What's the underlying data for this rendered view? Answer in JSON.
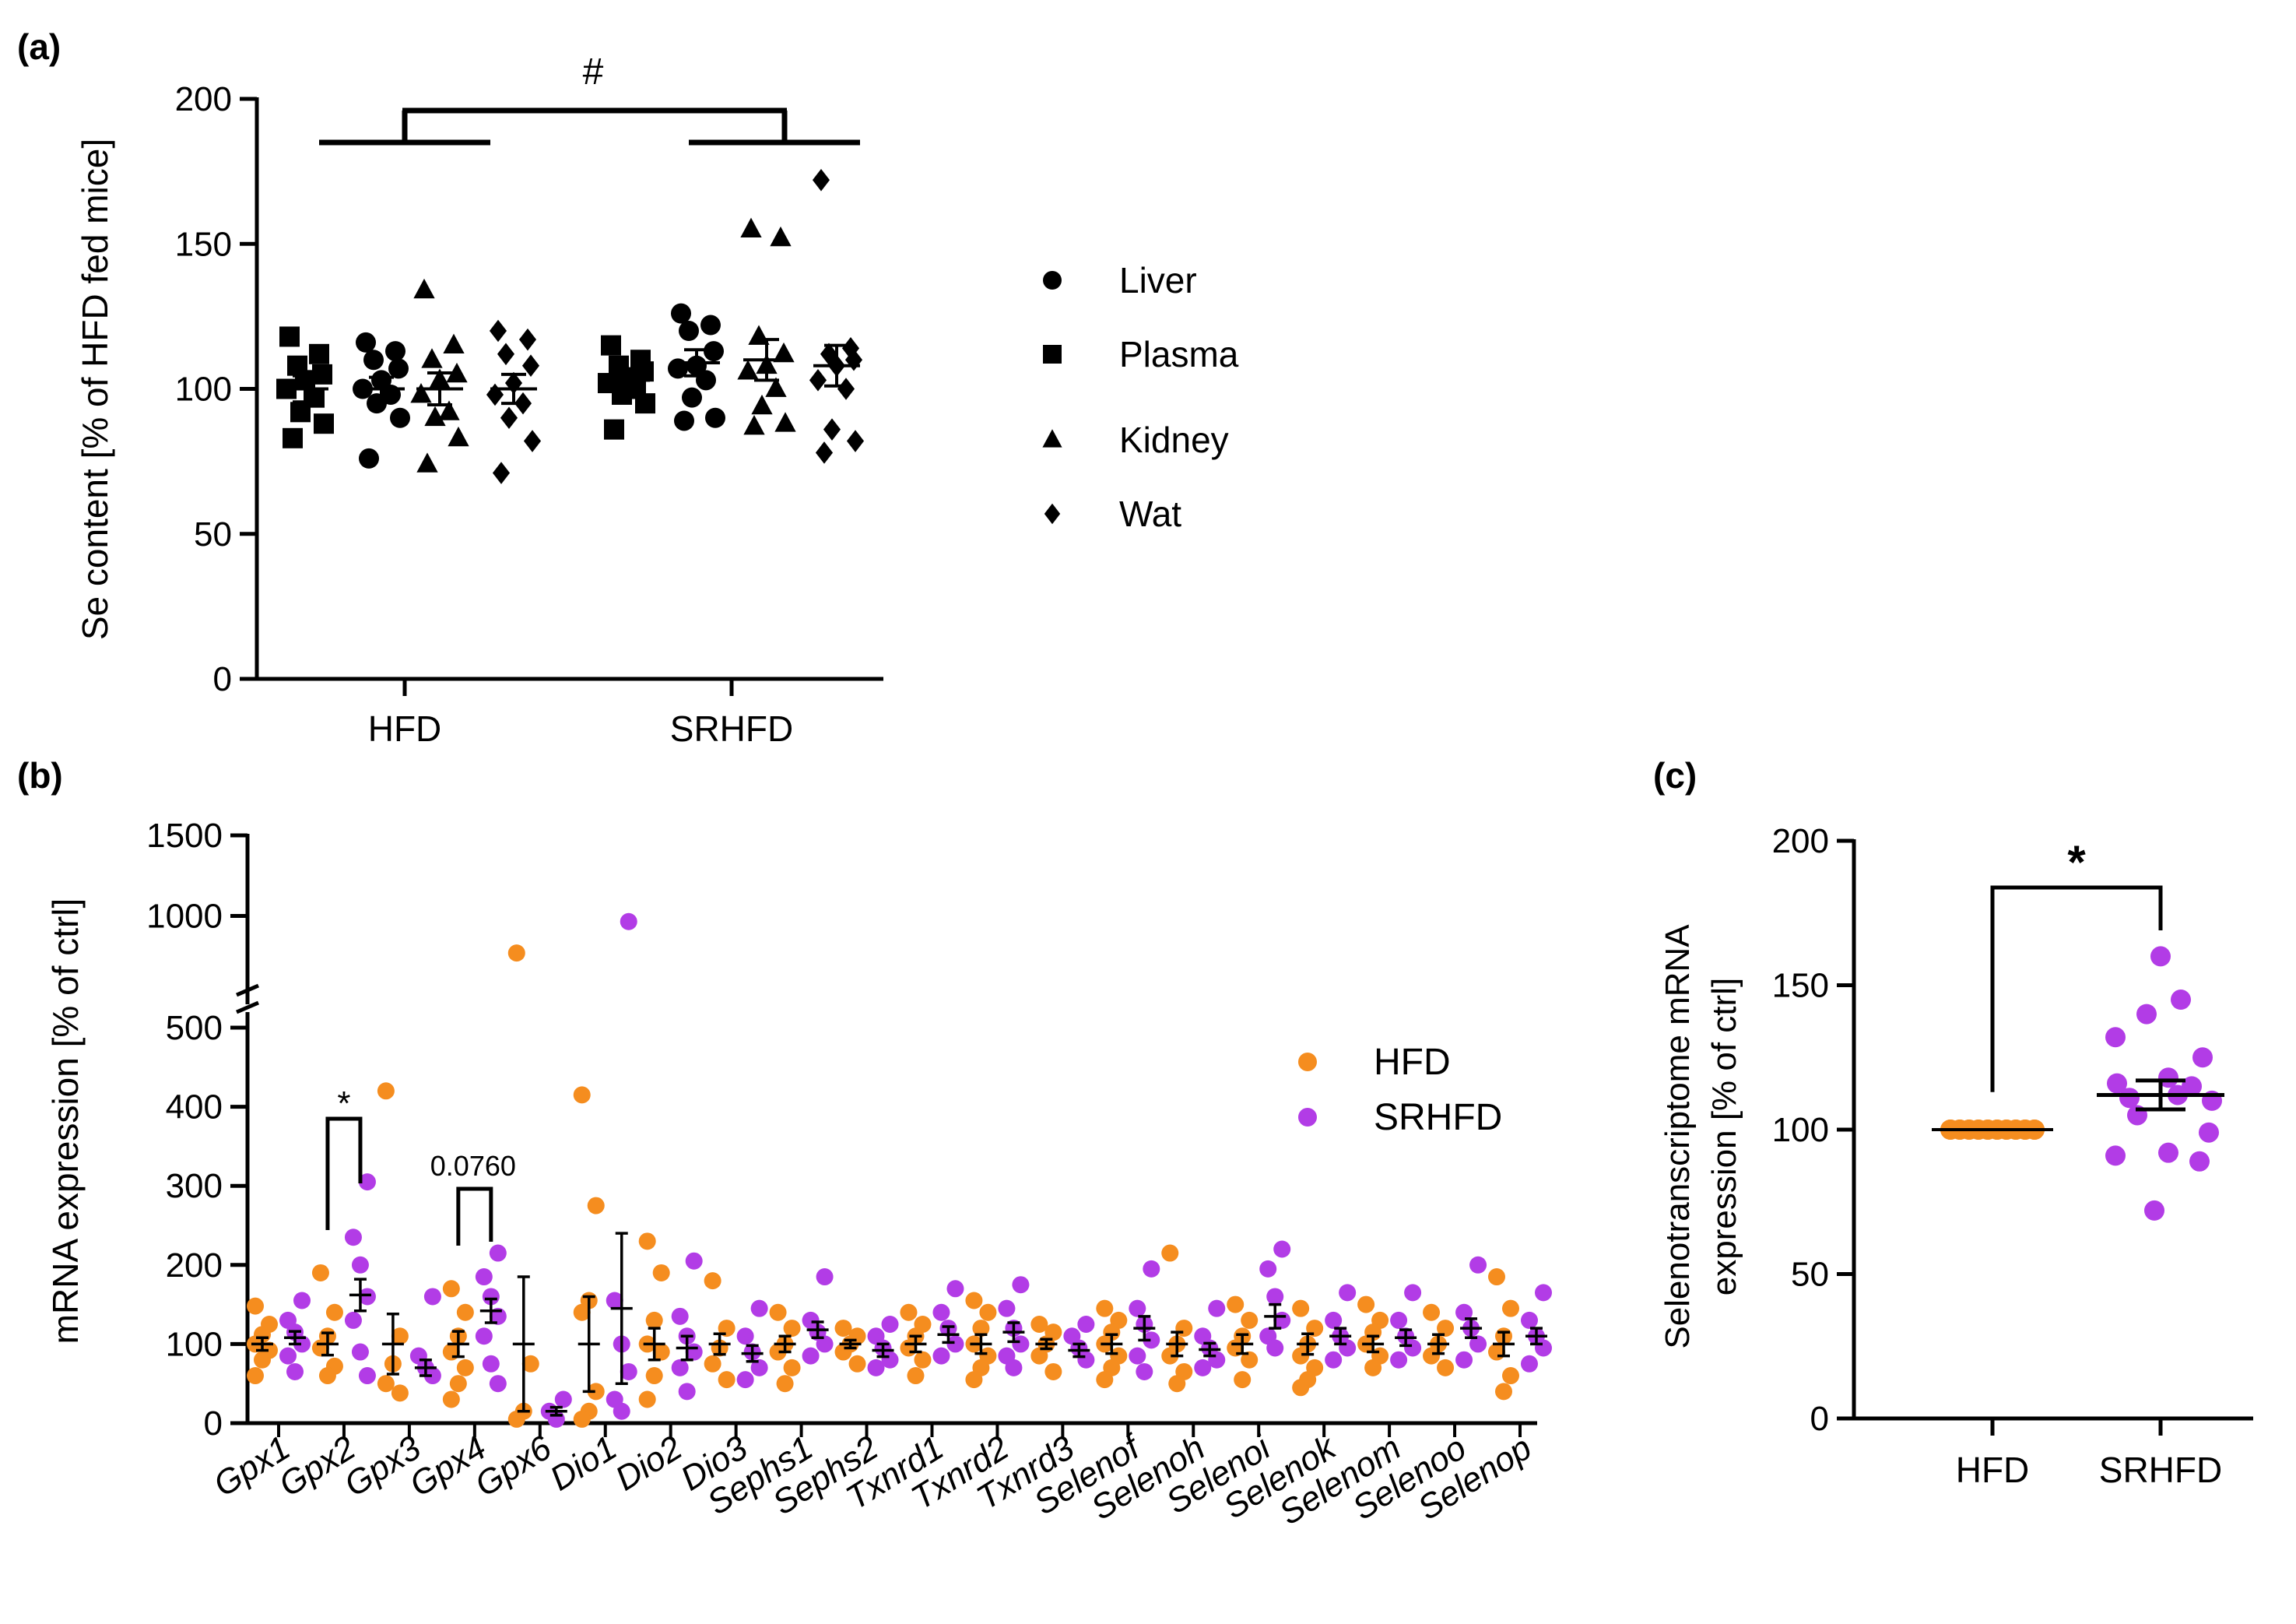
{
  "colors": {
    "hfd": "#f58d1f",
    "srhfd": "#b23ce6",
    "black": "#000000"
  },
  "chart_data": [
    {
      "panel": "(a)",
      "type": "scatter",
      "ylabel": "Se content [% of HFD fed mice]",
      "ylim": [
        0,
        200
      ],
      "yticks": [
        0,
        50,
        100,
        150,
        200
      ],
      "groups": [
        "HFD",
        "SRHFD"
      ],
      "significance": "#",
      "legend": [
        {
          "label": "Liver",
          "marker": "circle"
        },
        {
          "label": "Plasma",
          "marker": "square"
        },
        {
          "label": "Kidney",
          "marker": "triangle"
        },
        {
          "label": "Wat",
          "marker": "diamond"
        }
      ],
      "series": [
        {
          "group": "HFD",
          "tissue": "Plasma",
          "marker": "square",
          "mean": 100,
          "sem": 4.5,
          "values": [
            118,
            112,
            108,
            105,
            103,
            100,
            97,
            92,
            88,
            83
          ]
        },
        {
          "group": "HFD",
          "tissue": "Liver",
          "marker": "circle",
          "mean": 100,
          "sem": 4,
          "values": [
            116,
            113,
            110,
            107,
            103,
            100,
            98,
            95,
            90,
            76
          ]
        },
        {
          "group": "HFD",
          "tissue": "Kidney",
          "marker": "triangle",
          "mean": 100,
          "sem": 5.5,
          "values": [
            134,
            115,
            110,
            105,
            103,
            98,
            92,
            90,
            83,
            74
          ]
        },
        {
          "group": "HFD",
          "tissue": "Wat",
          "marker": "diamond",
          "mean": 100,
          "sem": 5,
          "values": [
            120,
            117,
            112,
            108,
            102,
            98,
            95,
            90,
            82,
            71
          ]
        },
        {
          "group": "SRHFD",
          "tissue": "Plasma",
          "marker": "square",
          "mean": 103,
          "sem": 3,
          "values": [
            115,
            110,
            108,
            106,
            104,
            102,
            100,
            98,
            95,
            86
          ]
        },
        {
          "group": "SRHFD",
          "tissue": "Liver",
          "marker": "circle",
          "mean": 109,
          "sem": 4.5,
          "values": [
            126,
            122,
            120,
            113,
            108,
            107,
            103,
            97,
            90,
            89
          ]
        },
        {
          "group": "SRHFD",
          "tissue": "Kidney",
          "marker": "triangle",
          "mean": 110,
          "sem": 7,
          "values": [
            155,
            152,
            118,
            112,
            108,
            106,
            100,
            94,
            88,
            87
          ]
        },
        {
          "group": "SRHFD",
          "tissue": "Wat",
          "marker": "diamond",
          "mean": 108,
          "sem": 7,
          "values": [
            172,
            114,
            112,
            110,
            108,
            103,
            100,
            86,
            82,
            78
          ]
        }
      ]
    },
    {
      "panel": "(b)",
      "type": "scatter",
      "ylabel": "mRNA expression [% of ctrl]",
      "ylim_lower": [
        0,
        500
      ],
      "ylim_upper": [
        500,
        1500
      ],
      "yticks": [
        0,
        100,
        200,
        300,
        400,
        500,
        1000,
        1500
      ],
      "legend": [
        {
          "label": "HFD",
          "series": "hfd"
        },
        {
          "label": "SRHFD",
          "series": "srhfd"
        }
      ],
      "genes": [
        "Gpx1",
        "Gpx2",
        "Gpx3",
        "Gpx4",
        "Gpx6",
        "Dio1",
        "Dio2",
        "Dio3",
        "Sephs1",
        "Sephs2",
        "Txnrd1",
        "Txnrd2",
        "Txnrd3",
        "Selenof",
        "Selenoh",
        "Selenoi",
        "Selenok",
        "Selenom",
        "Selenoo",
        "Selenop"
      ],
      "hfd": {
        "mean": [
          100,
          100,
          100,
          100,
          100,
          100,
          100,
          100,
          100,
          100,
          100,
          100,
          100,
          100,
          100,
          100,
          100,
          100,
          100,
          100
        ],
        "sem": [
          8,
          14,
          38,
          16,
          85,
          60,
          20,
          13,
          10,
          5,
          10,
          12,
          6,
          12,
          15,
          12,
          13,
          10,
          12,
          15
        ],
        "values": [
          [
            148,
            125,
            112,
            100,
            92,
            80,
            60
          ],
          [
            190,
            140,
            110,
            95,
            72,
            60
          ],
          [
            420,
            110,
            75,
            50,
            38
          ],
          [
            170,
            140,
            110,
            90,
            70,
            50,
            30
          ],
          [
            770,
            75,
            15,
            5
          ],
          [
            415,
            275,
            155,
            140,
            40,
            15,
            5
          ],
          [
            230,
            190,
            130,
            100,
            90,
            60,
            30
          ],
          [
            180,
            120,
            95,
            75,
            55
          ],
          [
            140,
            120,
            100,
            90,
            70,
            50
          ],
          [
            120,
            110,
            100,
            90,
            75
          ],
          [
            140,
            125,
            110,
            95,
            80,
            60
          ],
          [
            155,
            140,
            120,
            100,
            85,
            70,
            55
          ],
          [
            125,
            115,
            100,
            85,
            65
          ],
          [
            145,
            130,
            115,
            100,
            85,
            70,
            55
          ],
          [
            215,
            120,
            100,
            85,
            65,
            50
          ],
          [
            150,
            130,
            110,
            95,
            80,
            55
          ],
          [
            145,
            120,
            100,
            85,
            70,
            55,
            45
          ],
          [
            150,
            130,
            115,
            100,
            85,
            70
          ],
          [
            140,
            120,
            100,
            85,
            70
          ],
          [
            185,
            145,
            110,
            90,
            60,
            40
          ]
        ]
      },
      "srhfd": {
        "mean": [
          108,
          162,
          70,
          142,
          15,
          145,
          95,
          88,
          118,
          92,
          112,
          115,
          92,
          120,
          93,
          135,
          110,
          108,
          120,
          110
        ],
        "sem": [
          8,
          20,
          10,
          15,
          5,
          95,
          15,
          10,
          10,
          8,
          10,
          12,
          8,
          15,
          8,
          15,
          10,
          10,
          12,
          10
        ],
        "values": [
          [
            155,
            130,
            115,
            100,
            85,
            65
          ],
          [
            305,
            235,
            200,
            160,
            130,
            90,
            60
          ],
          [
            160,
            85,
            70,
            60
          ],
          [
            215,
            185,
            160,
            135,
            110,
            75,
            50
          ],
          [
            30,
            15,
            5
          ],
          [
            965,
            155,
            100,
            65,
            30,
            15
          ],
          [
            205,
            135,
            110,
            90,
            70,
            40
          ],
          [
            145,
            110,
            90,
            70,
            55
          ],
          [
            185,
            130,
            115,
            100,
            85
          ],
          [
            125,
            110,
            95,
            80,
            70
          ],
          [
            170,
            140,
            120,
            100,
            85
          ],
          [
            175,
            145,
            120,
            100,
            85,
            70
          ],
          [
            125,
            110,
            95,
            80
          ],
          [
            195,
            145,
            125,
            105,
            85,
            65
          ],
          [
            145,
            110,
            95,
            80,
            70
          ],
          [
            220,
            195,
            160,
            130,
            110,
            95
          ],
          [
            165,
            130,
            110,
            95,
            80
          ],
          [
            165,
            130,
            110,
            95,
            80
          ],
          [
            200,
            140,
            120,
            100,
            80
          ],
          [
            165,
            130,
            110,
            95,
            75
          ]
        ]
      },
      "annotations": [
        {
          "gene": "Gpx2",
          "text": "*"
        },
        {
          "gene": "Gpx4",
          "text": "0.0760"
        }
      ]
    },
    {
      "panel": "(c)",
      "type": "scatter",
      "ylabel_line1": "Selenotranscriptome mRNA",
      "ylabel_line2": "expression [% of ctrl]",
      "ylim": [
        0,
        200
      ],
      "yticks": [
        0,
        50,
        100,
        150,
        200
      ],
      "categories": [
        "HFD",
        "SRHFD"
      ],
      "significance": "*",
      "hfd": {
        "mean": 100,
        "sem": 0.5,
        "values": [
          100,
          100,
          100,
          100,
          100,
          100,
          100,
          100,
          100,
          100,
          100,
          100,
          100,
          100,
          100,
          100,
          100,
          100,
          100,
          100
        ]
      },
      "srhfd": {
        "mean": 112,
        "sem": 5,
        "values": [
          160,
          145,
          140,
          132,
          125,
          118,
          116,
          115,
          112,
          111,
          110,
          105,
          99,
          92,
          91,
          89,
          72
        ]
      }
    }
  ]
}
